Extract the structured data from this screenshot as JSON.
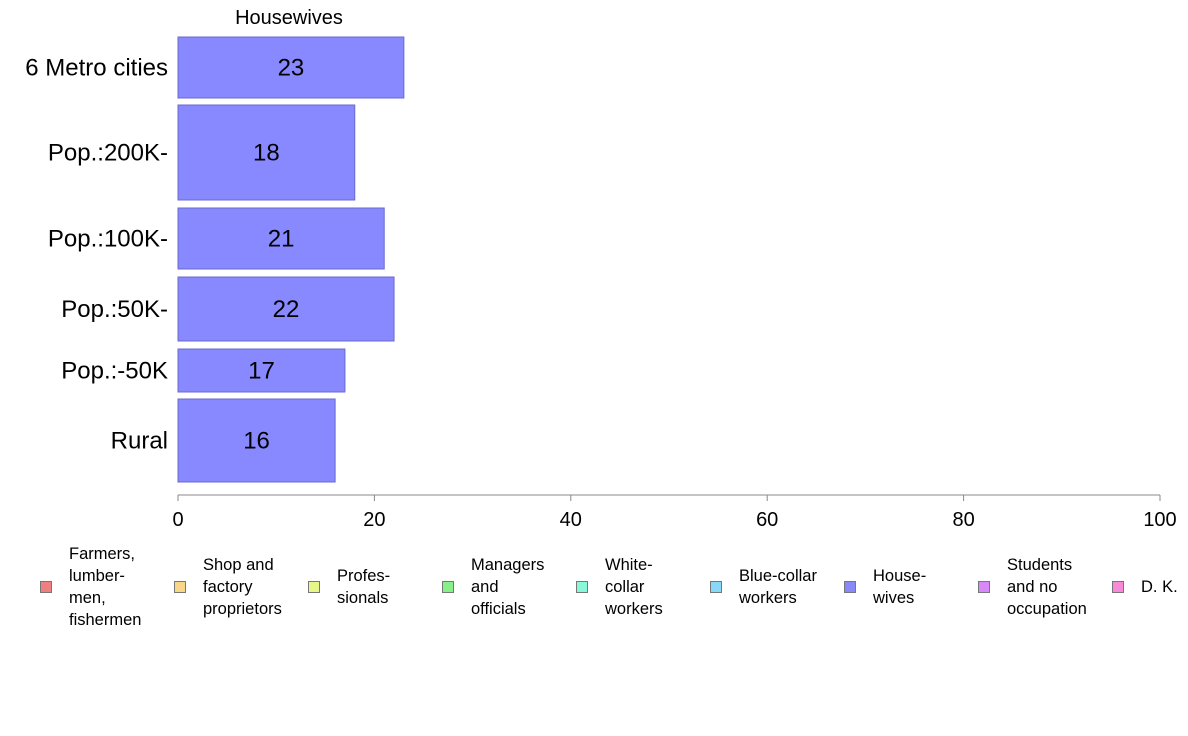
{
  "chart_data": {
    "type": "bar",
    "orientation": "horizontal",
    "title": "Housewives",
    "categories": [
      "6 Metro cities",
      "Pop.:200K-",
      "Pop.:100K-",
      "Pop.:50K-",
      "Pop.:-50K",
      "Rural"
    ],
    "values": [
      23,
      18,
      21,
      22,
      17,
      16
    ],
    "xlim": [
      0,
      100
    ],
    "xticks": [
      0,
      20,
      40,
      60,
      80,
      100
    ],
    "xlabel": "",
    "ylabel": "",
    "grid": false,
    "bar_color": "#8888ff",
    "legend_position": "bottom",
    "legend": [
      {
        "label": "Farmers,\nlumber-\nmen,\nfishermen",
        "color": "#f08080"
      },
      {
        "label": "Shop and\nfactory\nproprietors",
        "color": "#f8d888"
      },
      {
        "label": "Profes-\nsionals",
        "color": "#e8f888"
      },
      {
        "label": "Managers\nand\nofficials",
        "color": "#88f088"
      },
      {
        "label": "White-\ncollar\nworkers",
        "color": "#88f8d8"
      },
      {
        "label": "Blue-collar\nworkers",
        "color": "#88d8f8"
      },
      {
        "label": "House-\nwives",
        "color": "#8888f8"
      },
      {
        "label": "Students\nand no\noccupation",
        "color": "#d888f8"
      },
      {
        "label": "D. K.",
        "color": "#f888d8"
      }
    ]
  }
}
